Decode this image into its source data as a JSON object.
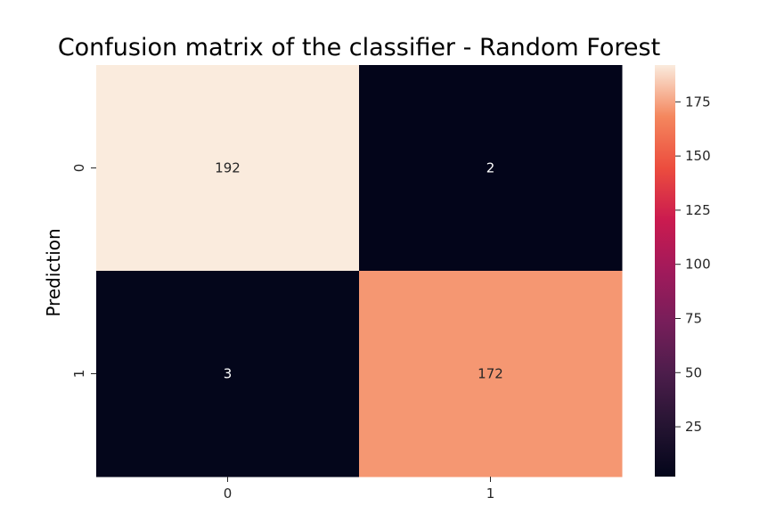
{
  "chart_data": {
    "type": "heatmap",
    "title": "Confusion matrix of the classifier - Random Forest",
    "ylabel": "Prediction",
    "xlabel": "",
    "x_categories": [
      "0",
      "1"
    ],
    "y_categories": [
      "0",
      "1"
    ],
    "values": [
      [
        192,
        2
      ],
      [
        3,
        172
      ]
    ],
    "colormap": "rocket",
    "colorbar": {
      "range": [
        2,
        192
      ],
      "ticks": [
        25,
        50,
        75,
        100,
        125,
        150,
        175
      ]
    },
    "grid": false
  }
}
